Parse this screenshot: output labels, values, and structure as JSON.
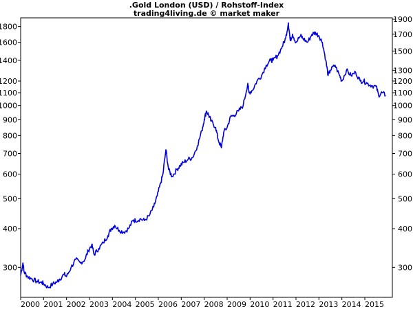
{
  "chart_data": {
    "type": "line",
    "title": ".Gold London (USD) / Rohstoff-Index",
    "subtitle": "trading4living.de © market maker",
    "y_scale": "log",
    "ylim": [
      240,
      1920
    ],
    "xlim": [
      2000.0,
      2016.2
    ],
    "y_ticks": [
      300,
      400,
      500,
      600,
      700,
      800,
      900,
      1000,
      1100,
      1200,
      1400,
      1600,
      1800
    ],
    "y_ticks_right": [
      300,
      400,
      500,
      600,
      700,
      800,
      900,
      1000,
      1100,
      1200,
      1300,
      1500,
      1700,
      1900
    ],
    "y_tick_labels": [
      "300",
      "400",
      "500",
      "600",
      "700",
      "800",
      "900",
      "1000",
      "1100",
      "1200",
      "1400",
      "1600",
      "1800"
    ],
    "y_tick_labels_right": [
      "300",
      "400",
      "500",
      "600",
      "700",
      "800",
      "900",
      "1000",
      "1100",
      "1200",
      "1300",
      "1500",
      "1700",
      "1900"
    ],
    "x_ticks": [
      2000,
      2001,
      2002,
      2003,
      2004,
      2005,
      2006,
      2007,
      2008,
      2009,
      2010,
      2011,
      2012,
      2013,
      2014,
      2015
    ],
    "x_tick_labels": [
      "2000",
      "2001",
      "2002",
      "2003",
      "2004",
      "2005",
      "2006",
      "2007",
      "2008",
      "2009",
      "2010",
      "2011",
      "2012",
      "2013",
      "2014",
      "2015"
    ],
    "grid": false,
    "line_color": "#0000dd",
    "series": [
      {
        "x": [
          2000.0,
          2000.1,
          2000.15,
          2000.3,
          2000.5,
          2000.7,
          2000.9,
          2001.0,
          2001.2,
          2001.4,
          2001.6,
          2001.7,
          2001.9,
          2002.0,
          2002.2,
          2002.4,
          2002.6,
          2002.8,
          2002.95,
          2003.1,
          2003.2,
          2003.4,
          2003.6,
          2003.8,
          2003.95,
          2004.1,
          2004.3,
          2004.5,
          2004.7,
          2004.9,
          2005.0,
          2005.2,
          2005.4,
          2005.6,
          2005.8,
          2005.95,
          2006.1,
          2006.2,
          2006.33,
          2006.45,
          2006.6,
          2006.8,
          2006.95,
          2007.1,
          2007.3,
          2007.5,
          2007.7,
          2007.9,
          2008.0,
          2008.1,
          2008.2,
          2008.3,
          2008.5,
          2008.6,
          2008.75,
          2008.85,
          2009.0,
          2009.15,
          2009.3,
          2009.5,
          2009.7,
          2009.9,
          2009.95,
          2010.1,
          2010.3,
          2010.5,
          2010.7,
          2010.9,
          2011.0,
          2011.2,
          2011.4,
          2011.55,
          2011.67,
          2011.75,
          2011.85,
          2012.0,
          2012.2,
          2012.3,
          2012.5,
          2012.7,
          2012.85,
          2013.0,
          2013.15,
          2013.3,
          2013.4,
          2013.5,
          2013.7,
          2013.9,
          2014.0,
          2014.2,
          2014.4,
          2014.6,
          2014.8,
          2014.95,
          2015.1,
          2015.3,
          2015.5,
          2015.6,
          2015.75,
          2015.9
        ],
        "values": [
          283,
          310,
          290,
          280,
          275,
          270,
          268,
          266,
          258,
          265,
          270,
          275,
          285,
          280,
          300,
          318,
          310,
          318,
          340,
          355,
          330,
          345,
          360,
          380,
          400,
          410,
          395,
          390,
          400,
          425,
          425,
          430,
          425,
          440,
          470,
          510,
          560,
          600,
          720,
          620,
          590,
          620,
          640,
          655,
          670,
          680,
          740,
          830,
          900,
          960,
          930,
          890,
          850,
          780,
          730,
          820,
          850,
          920,
          930,
          960,
          1000,
          1180,
          1100,
          1120,
          1200,
          1250,
          1350,
          1400,
          1400,
          1450,
          1550,
          1650,
          1850,
          1620,
          1700,
          1600,
          1680,
          1650,
          1600,
          1700,
          1720,
          1680,
          1600,
          1400,
          1250,
          1300,
          1350,
          1250,
          1200,
          1300,
          1250,
          1280,
          1200,
          1200,
          1180,
          1160,
          1150,
          1080,
          1100,
          1080
        ]
      }
    ]
  }
}
